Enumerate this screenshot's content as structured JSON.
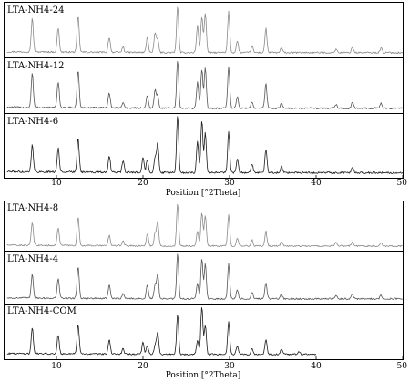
{
  "chart_data": [
    {
      "type": "line",
      "xlabel": "Position [°2Theta]",
      "xlim": [
        4,
        50
      ],
      "xticks": [
        10,
        20,
        30,
        40,
        50
      ],
      "xtick_labels": [
        "10",
        "20",
        "30",
        "40",
        "50"
      ],
      "series": [
        {
          "name": "LTA-NH4-24",
          "peaks": [
            [
              7.2,
              0.72
            ],
            [
              10.2,
              0.52
            ],
            [
              12.5,
              0.78
            ],
            [
              16.1,
              0.33
            ],
            [
              17.7,
              0.12
            ],
            [
              20.5,
              0.33
            ],
            [
              21.4,
              0.42
            ],
            [
              21.7,
              0.28
            ],
            [
              24.0,
              1.0
            ],
            [
              26.3,
              0.58
            ],
            [
              26.8,
              0.78
            ],
            [
              27.2,
              0.85
            ],
            [
              29.9,
              0.88
            ],
            [
              30.9,
              0.25
            ],
            [
              32.6,
              0.14
            ],
            [
              34.2,
              0.52
            ],
            [
              36.0,
              0.1
            ],
            [
              42.3,
              0.08
            ],
            [
              44.2,
              0.12
            ],
            [
              47.5,
              0.1
            ]
          ]
        },
        {
          "name": "LTA-NH4-12",
          "peaks": [
            [
              7.2,
              0.72
            ],
            [
              10.2,
              0.55
            ],
            [
              12.5,
              0.8
            ],
            [
              16.1,
              0.32
            ],
            [
              17.7,
              0.12
            ],
            [
              20.5,
              0.27
            ],
            [
              21.4,
              0.38
            ],
            [
              21.7,
              0.26
            ],
            [
              24.0,
              1.0
            ],
            [
              26.3,
              0.55
            ],
            [
              26.8,
              0.82
            ],
            [
              27.2,
              0.85
            ],
            [
              29.9,
              0.88
            ],
            [
              30.9,
              0.25
            ],
            [
              32.6,
              0.14
            ],
            [
              34.2,
              0.52
            ],
            [
              36.0,
              0.1
            ],
            [
              42.3,
              0.08
            ],
            [
              44.2,
              0.12
            ],
            [
              47.5,
              0.1
            ]
          ]
        },
        {
          "name": "LTA-NH4-6",
          "peaks": [
            [
              7.2,
              0.48
            ],
            [
              10.2,
              0.42
            ],
            [
              12.5,
              0.62
            ],
            [
              16.1,
              0.3
            ],
            [
              17.7,
              0.2
            ],
            [
              20.0,
              0.28
            ],
            [
              20.5,
              0.24
            ],
            [
              21.4,
              0.28
            ],
            [
              21.7,
              0.52
            ],
            [
              24.0,
              1.0
            ],
            [
              26.3,
              0.55
            ],
            [
              26.8,
              0.92
            ],
            [
              27.2,
              0.7
            ],
            [
              29.9,
              0.72
            ],
            [
              30.9,
              0.24
            ],
            [
              32.6,
              0.15
            ],
            [
              34.2,
              0.42
            ],
            [
              36.0,
              0.12
            ],
            [
              44.2,
              0.1
            ]
          ]
        }
      ]
    },
    {
      "type": "line",
      "xlabel": "Position [°2Theta]",
      "xlim": [
        4,
        50
      ],
      "xticks": [
        10,
        20,
        30,
        40,
        50
      ],
      "xtick_labels": [
        "10",
        "20",
        "30",
        "40",
        "50"
      ],
      "series": [
        {
          "name": "LTA-NH4-8",
          "peaks": [
            [
              7.2,
              0.55
            ],
            [
              10.2,
              0.42
            ],
            [
              12.5,
              0.68
            ],
            [
              16.1,
              0.25
            ],
            [
              17.7,
              0.12
            ],
            [
              20.5,
              0.3
            ],
            [
              21.4,
              0.3
            ],
            [
              21.7,
              0.58
            ],
            [
              24.0,
              1.0
            ],
            [
              26.3,
              0.35
            ],
            [
              26.8,
              0.8
            ],
            [
              27.2,
              0.72
            ],
            [
              29.9,
              0.75
            ],
            [
              30.9,
              0.2
            ],
            [
              32.6,
              0.14
            ],
            [
              34.2,
              0.35
            ],
            [
              36.0,
              0.1
            ],
            [
              42.3,
              0.08
            ],
            [
              44.2,
              0.1
            ],
            [
              47.5,
              0.08
            ]
          ]
        },
        {
          "name": "LTA-NH4-4",
          "peaks": [
            [
              7.2,
              0.55
            ],
            [
              10.2,
              0.45
            ],
            [
              12.5,
              0.72
            ],
            [
              16.1,
              0.3
            ],
            [
              17.7,
              0.12
            ],
            [
              20.5,
              0.3
            ],
            [
              21.4,
              0.3
            ],
            [
              21.7,
              0.55
            ],
            [
              24.0,
              1.0
            ],
            [
              26.3,
              0.35
            ],
            [
              26.8,
              0.9
            ],
            [
              27.2,
              0.78
            ],
            [
              29.9,
              0.78
            ],
            [
              30.9,
              0.2
            ],
            [
              32.6,
              0.15
            ],
            [
              34.2,
              0.35
            ],
            [
              36.0,
              0.1
            ],
            [
              42.3,
              0.08
            ],
            [
              44.2,
              0.1
            ],
            [
              47.5,
              0.08
            ]
          ]
        },
        {
          "name": "LTA-NH4-COM",
          "x_end": 40,
          "peaks": [
            [
              7.2,
              0.55
            ],
            [
              10.2,
              0.4
            ],
            [
              12.5,
              0.62
            ],
            [
              16.1,
              0.3
            ],
            [
              17.7,
              0.12
            ],
            [
              20.0,
              0.25
            ],
            [
              20.5,
              0.18
            ],
            [
              21.4,
              0.2
            ],
            [
              21.7,
              0.48
            ],
            [
              24.0,
              0.85
            ],
            [
              26.3,
              0.3
            ],
            [
              26.8,
              1.0
            ],
            [
              27.2,
              0.62
            ],
            [
              29.9,
              0.7
            ],
            [
              30.9,
              0.18
            ],
            [
              32.6,
              0.12
            ],
            [
              34.2,
              0.32
            ],
            [
              36.0,
              0.1
            ],
            [
              38.0,
              0.06
            ]
          ]
        }
      ]
    }
  ],
  "colors": {
    "frame": "#000000",
    "trace_light": "#8a8a8a",
    "trace_mid": "#555555",
    "trace_dark": "#1a1a1a"
  }
}
